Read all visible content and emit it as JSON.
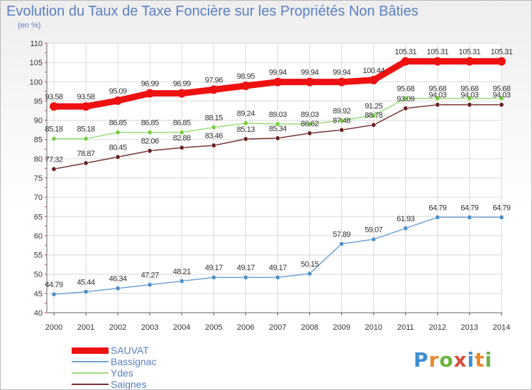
{
  "title": "Evolution du Taux de Taxe Foncière sur les Propriétés Non Bâties",
  "unit": "(en %)",
  "logo": {
    "text": "Proxiti",
    "letter_colors": [
      "#3d8fd6",
      "#e8882c",
      "#6cb33e",
      "#d94f3d",
      "#3d8fd6",
      "#e8882c",
      "#6cb33e"
    ]
  },
  "chart_data": {
    "type": "line",
    "x": [
      2000,
      2001,
      2002,
      2003,
      2004,
      2005,
      2006,
      2007,
      2008,
      2009,
      2010,
      2011,
      2012,
      2013,
      2014
    ],
    "ylim": [
      40,
      110
    ],
    "yticks": [
      40,
      45,
      50,
      55,
      60,
      65,
      70,
      75,
      80,
      85,
      90,
      95,
      100,
      105,
      110
    ],
    "grid": true,
    "legend": "bottom-left",
    "series": [
      {
        "name": "SAUVAT",
        "color": "#ee1111",
        "width": "thick",
        "values": [
          93.58,
          93.58,
          95.09,
          96.99,
          96.99,
          97.96,
          98.95,
          99.94,
          99.94,
          99.94,
          100.44,
          105.31,
          105.31,
          105.31,
          105.31
        ],
        "labels": [
          "93.58",
          "93.58",
          "95.09",
          "96.99",
          "96.99",
          "97.96",
          "98.95",
          "99.94",
          "99.94",
          "99.94",
          "100.44",
          "105.31",
          "105.31",
          "105.31",
          "105.31"
        ]
      },
      {
        "name": "Bassignac",
        "color": "#6fa3d3",
        "marker": "#4d8fcc",
        "values": [
          44.79,
          45.44,
          46.34,
          47.27,
          48.21,
          49.17,
          49.17,
          49.17,
          50.15,
          57.89,
          59.07,
          61.93,
          64.79,
          64.79,
          64.79
        ],
        "labels": [
          "44.79",
          "45.44",
          "46.34",
          "47.27",
          "48.21",
          "49.17",
          "49.17",
          "49.17",
          "50.15",
          "57.89",
          "59.07",
          "61.93",
          "64.79",
          "64.79",
          "64.79"
        ]
      },
      {
        "name": "Ydes",
        "color": "#99dd77",
        "marker": "#77cc44",
        "values": [
          85.18,
          85.18,
          86.85,
          86.85,
          86.85,
          88.15,
          89.24,
          89.03,
          89.03,
          89.92,
          91.25,
          95.68,
          95.68,
          95.68,
          95.68
        ],
        "labels": [
          "85.18",
          "85.18",
          "86.85",
          "86.85",
          "86.85",
          "88.15",
          "89.24",
          "89.03",
          "89.03",
          "89.92",
          "91.25",
          "95.68",
          "95.68",
          "95.68",
          "95.68"
        ]
      },
      {
        "name": "Saignes",
        "color": "#7a3333",
        "marker": "#6a2222",
        "values": [
          77.32,
          78.87,
          80.45,
          82.06,
          82.88,
          83.46,
          85.13,
          85.34,
          86.62,
          87.48,
          88.78,
          93.09,
          94.03,
          94.03,
          94.03
        ],
        "labels": [
          "77.32",
          "78.87",
          "80.45",
          "82.06",
          "82.88",
          "83.46",
          "85.13",
          "85.34",
          "86.62",
          "87.48",
          "88.78",
          "93.09",
          "94.03",
          "94.03",
          "94.03"
        ]
      }
    ]
  }
}
